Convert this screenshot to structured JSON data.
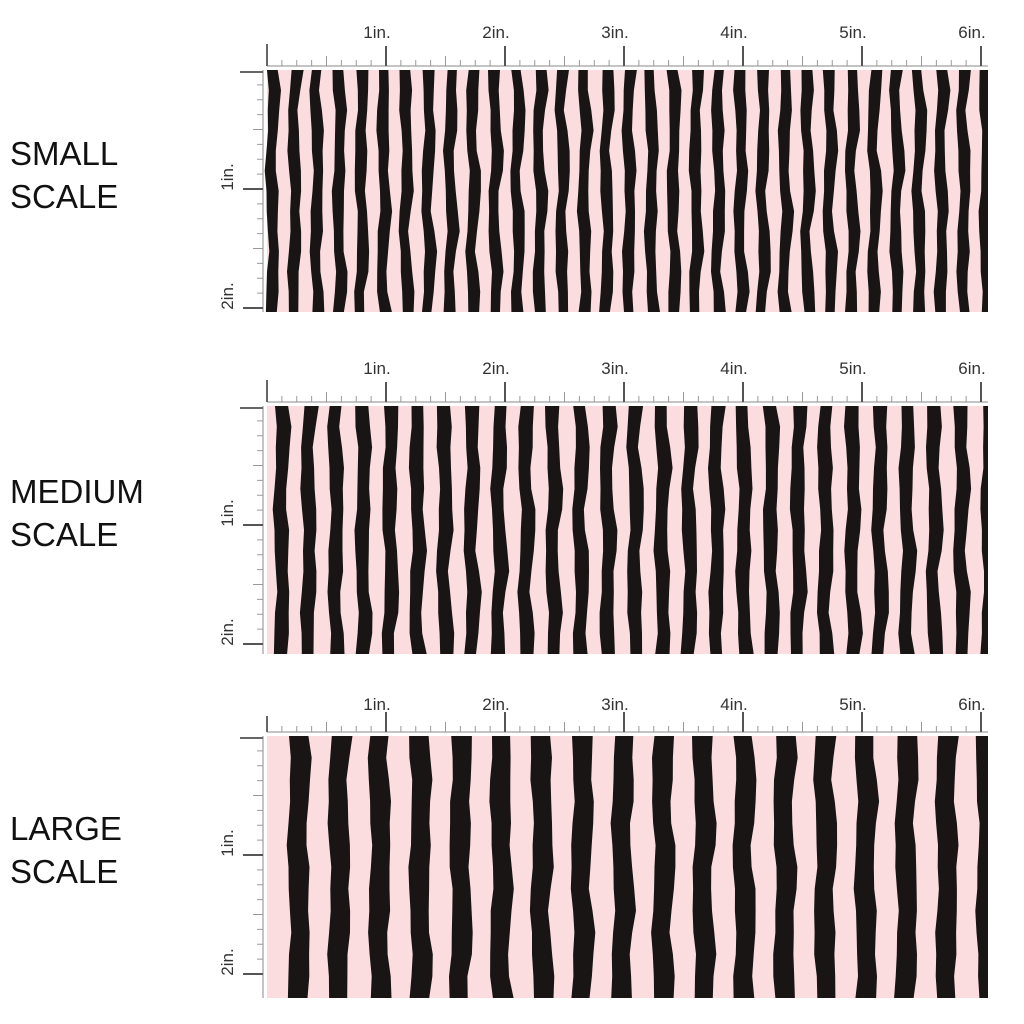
{
  "panels": [
    {
      "label": [
        "SMALL",
        "SCALE"
      ],
      "top_ruler": [
        "1in.",
        "2in.",
        "3in.",
        "4in.",
        "5in.",
        "6in."
      ],
      "side_ruler": [
        "1in.",
        "2in."
      ]
    },
    {
      "label": [
        "MEDIUM",
        "SCALE"
      ],
      "top_ruler": [
        "1in.",
        "2in.",
        "3in.",
        "4in.",
        "5in.",
        "6in."
      ],
      "side_ruler": [
        "1in.",
        "2in."
      ]
    },
    {
      "label": [
        "LARGE",
        "SCALE"
      ],
      "top_ruler": [
        "1in.",
        "2in.",
        "3in.",
        "4in.",
        "5in.",
        "6in."
      ],
      "side_ruler": [
        "1in.",
        "2in."
      ]
    }
  ]
}
